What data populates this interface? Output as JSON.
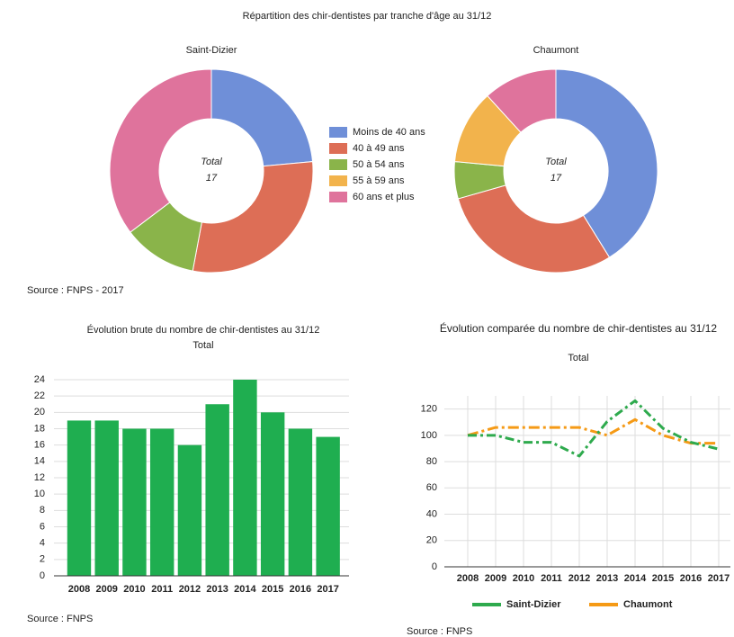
{
  "header_title": "Répartition des chir-dentistes par tranche d'âge au 31/12",
  "chart_data": [
    {
      "type": "donut",
      "title": "Saint-Dizier",
      "center_label": "Total",
      "center_value": 17,
      "categories": [
        "Moins de 40 ans",
        "40 à 49 ans",
        "50 à 54 ans",
        "55 à 59 ans",
        "60 ans et plus"
      ],
      "values": [
        4,
        5,
        2,
        0,
        6
      ],
      "colors": [
        "#6f8fd8",
        "#dd6e56",
        "#8ab44a",
        "#f2b34c",
        "#df739c"
      ],
      "source": "Source : FNPS - 2017"
    },
    {
      "type": "donut",
      "title": "Chaumont",
      "center_label": "Total",
      "center_value": 17,
      "categories": [
        "Moins de 40 ans",
        "40 à 49 ans",
        "50 à 54 ans",
        "55 à 59 ans",
        "60 ans et plus"
      ],
      "values": [
        7,
        5,
        1,
        2,
        2
      ],
      "colors": [
        "#6f8fd8",
        "#dd6e56",
        "#8ab44a",
        "#f2b34c",
        "#df739c"
      ]
    },
    {
      "type": "bar",
      "title": "Évolution brute du nombre de chir-dentistes au 31/12",
      "subtitle": "Total",
      "categories": [
        "2008",
        "2009",
        "2010",
        "2011",
        "2012",
        "2013",
        "2014",
        "2015",
        "2016",
        "2017"
      ],
      "values": [
        19,
        19,
        18,
        18,
        16,
        21,
        24,
        20,
        18,
        17
      ],
      "color": "#1fae50",
      "ylim": [
        0,
        24
      ],
      "yticks": [
        0,
        2,
        4,
        6,
        8,
        10,
        12,
        14,
        16,
        18,
        20,
        22,
        24
      ],
      "grid": true,
      "source": "Source : FNPS"
    },
    {
      "type": "line",
      "title": "Évolution comparée du nombre de chir-dentistes au 31/12",
      "subtitle": "Total",
      "categories": [
        "2008",
        "2009",
        "2010",
        "2011",
        "2012",
        "2013",
        "2014",
        "2015",
        "2016",
        "2017"
      ],
      "series": [
        {
          "name": "Saint-Dizier",
          "color": "#2eaa4d",
          "values": [
            100,
            100,
            94.7,
            94.7,
            84.2,
            110.5,
            126.3,
            105.3,
            94.7,
            89.5
          ]
        },
        {
          "name": "Chaumont",
          "color": "#f59a16",
          "values": [
            100,
            106,
            106,
            106,
            106,
            100,
            112,
            100,
            94,
            94
          ]
        }
      ],
      "ylim": [
        0,
        130
      ],
      "yticks": [
        0,
        20,
        40,
        60,
        80,
        100,
        120
      ],
      "grid": true,
      "source": "Source : FNPS"
    }
  ]
}
